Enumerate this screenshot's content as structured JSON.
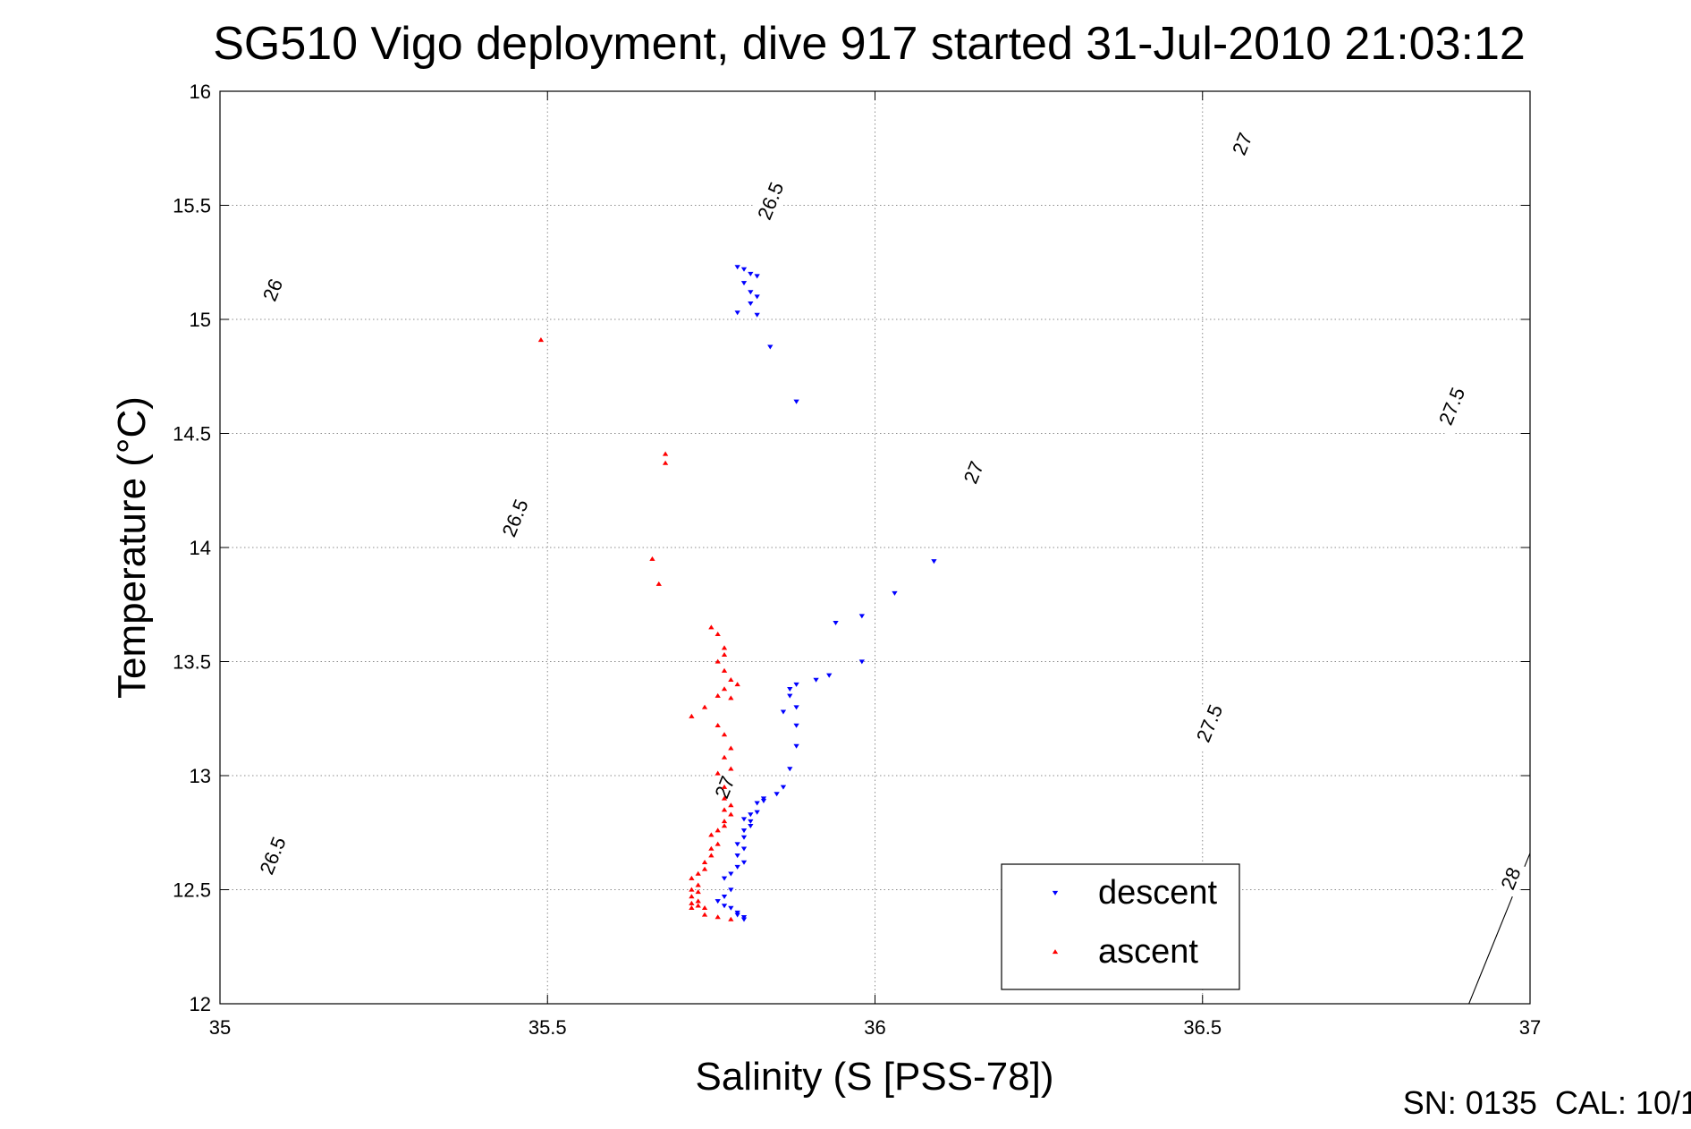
{
  "chart_data": {
    "type": "scatter",
    "title": "SG510 Vigo deployment, dive 917 started 31-Jul-2010 21:03:12",
    "xlabel": "Salinity (S [PSS-78])",
    "ylabel": "Temperature (°C)",
    "xlim": [
      35,
      37
    ],
    "ylim": [
      12,
      16
    ],
    "xticks": [
      "35",
      "35.5",
      "36",
      "36.5",
      "37"
    ],
    "yticks": [
      "12",
      "12.5",
      "13",
      "13.5",
      "14",
      "14.5",
      "15",
      "15.5",
      "16"
    ],
    "grid": true,
    "legend_position": "bottom-right",
    "series": [
      {
        "name": "descent",
        "marker": "triangle-down",
        "color": "#0000ff",
        "points": [
          [
            35.79,
            15.23
          ],
          [
            35.8,
            15.22
          ],
          [
            35.81,
            15.2
          ],
          [
            35.82,
            15.19
          ],
          [
            35.8,
            15.16
          ],
          [
            35.81,
            15.12
          ],
          [
            35.82,
            15.1
          ],
          [
            35.81,
            15.07
          ],
          [
            35.82,
            15.02
          ],
          [
            35.79,
            15.03
          ],
          [
            35.84,
            14.88
          ],
          [
            35.88,
            14.64
          ],
          [
            36.09,
            13.94
          ],
          [
            36.03,
            13.8
          ],
          [
            35.98,
            13.7
          ],
          [
            35.94,
            13.67
          ],
          [
            35.98,
            13.5
          ],
          [
            35.93,
            13.44
          ],
          [
            35.91,
            13.42
          ],
          [
            35.88,
            13.4
          ],
          [
            35.87,
            13.38
          ],
          [
            35.87,
            13.35
          ],
          [
            35.88,
            13.3
          ],
          [
            35.86,
            13.28
          ],
          [
            35.88,
            13.22
          ],
          [
            35.88,
            13.13
          ],
          [
            35.87,
            13.03
          ],
          [
            35.86,
            12.95
          ],
          [
            35.85,
            12.92
          ],
          [
            35.83,
            12.9
          ],
          [
            35.83,
            12.89
          ],
          [
            35.82,
            12.88
          ],
          [
            35.82,
            12.84
          ],
          [
            35.81,
            12.83
          ],
          [
            35.81,
            12.8
          ],
          [
            35.8,
            12.81
          ],
          [
            35.81,
            12.78
          ],
          [
            35.8,
            12.76
          ],
          [
            35.8,
            12.73
          ],
          [
            35.79,
            12.7
          ],
          [
            35.8,
            12.68
          ],
          [
            35.79,
            12.65
          ],
          [
            35.8,
            12.62
          ],
          [
            35.79,
            12.6
          ],
          [
            35.78,
            12.57
          ],
          [
            35.77,
            12.55
          ],
          [
            35.78,
            12.5
          ],
          [
            35.77,
            12.47
          ],
          [
            35.76,
            12.45
          ],
          [
            35.77,
            12.43
          ],
          [
            35.78,
            12.42
          ],
          [
            35.79,
            12.4
          ],
          [
            35.8,
            12.38
          ],
          [
            35.8,
            12.37
          ],
          [
            35.79,
            12.39
          ]
        ]
      },
      {
        "name": "ascent",
        "marker": "triangle-up",
        "color": "#ff0000",
        "points": [
          [
            35.49,
            14.91
          ],
          [
            35.68,
            14.41
          ],
          [
            35.68,
            14.37
          ],
          [
            35.66,
            13.95
          ],
          [
            35.67,
            13.84
          ],
          [
            35.75,
            13.65
          ],
          [
            35.76,
            13.62
          ],
          [
            35.77,
            13.56
          ],
          [
            35.77,
            13.53
          ],
          [
            35.76,
            13.5
          ],
          [
            35.77,
            13.46
          ],
          [
            35.78,
            13.42
          ],
          [
            35.79,
            13.4
          ],
          [
            35.77,
            13.38
          ],
          [
            35.76,
            13.35
          ],
          [
            35.78,
            13.34
          ],
          [
            35.74,
            13.3
          ],
          [
            35.72,
            13.26
          ],
          [
            35.76,
            13.22
          ],
          [
            35.77,
            13.18
          ],
          [
            35.78,
            13.12
          ],
          [
            35.77,
            13.08
          ],
          [
            35.78,
            13.03
          ],
          [
            35.76,
            13.01
          ],
          [
            35.77,
            12.95
          ],
          [
            35.77,
            12.9
          ],
          [
            35.78,
            12.87
          ],
          [
            35.77,
            12.85
          ],
          [
            35.78,
            12.83
          ],
          [
            35.77,
            12.8
          ],
          [
            35.77,
            12.78
          ],
          [
            35.76,
            12.76
          ],
          [
            35.75,
            12.74
          ],
          [
            35.76,
            12.7
          ],
          [
            35.75,
            12.68
          ],
          [
            35.75,
            12.65
          ],
          [
            35.74,
            12.62
          ],
          [
            35.74,
            12.59
          ],
          [
            35.73,
            12.57
          ],
          [
            35.72,
            12.55
          ],
          [
            35.73,
            12.52
          ],
          [
            35.72,
            12.5
          ],
          [
            35.73,
            12.49
          ],
          [
            35.72,
            12.47
          ],
          [
            35.73,
            12.45
          ],
          [
            35.72,
            12.44
          ],
          [
            35.73,
            12.43
          ],
          [
            35.72,
            12.42
          ],
          [
            35.74,
            12.42
          ],
          [
            35.76,
            12.38
          ],
          [
            35.74,
            12.39
          ],
          [
            35.78,
            12.37
          ]
        ]
      }
    ],
    "contours": [
      {
        "label": "26",
        "intercept": -248.93
      },
      {
        "label": "26.5",
        "intercept": -263.07
      },
      {
        "label": "27",
        "intercept": -277.21
      },
      {
        "label": "27.5",
        "intercept": -291.35
      },
      {
        "label": "28",
        "intercept": -305.48
      }
    ],
    "contour_labels": [
      {
        "text": "26",
        "x": 35.08,
        "y": 15.13
      },
      {
        "text": "26.5",
        "x": 35.84,
        "y": 15.52
      },
      {
        "text": "26.5",
        "x": 35.45,
        "y": 14.13
      },
      {
        "text": "26.5",
        "x": 35.08,
        "y": 12.65
      },
      {
        "text": "27",
        "x": 36.56,
        "y": 15.77
      },
      {
        "text": "27",
        "x": 36.15,
        "y": 14.33
      },
      {
        "text": "27",
        "x": 35.77,
        "y": 12.95
      },
      {
        "text": "27.5",
        "x": 36.88,
        "y": 14.62
      },
      {
        "text": "27.5",
        "x": 36.51,
        "y": 13.23
      },
      {
        "text": "28",
        "x": 36.97,
        "y": 12.55
      }
    ],
    "footer": "SN: 0135  CAL: 10/1"
  }
}
